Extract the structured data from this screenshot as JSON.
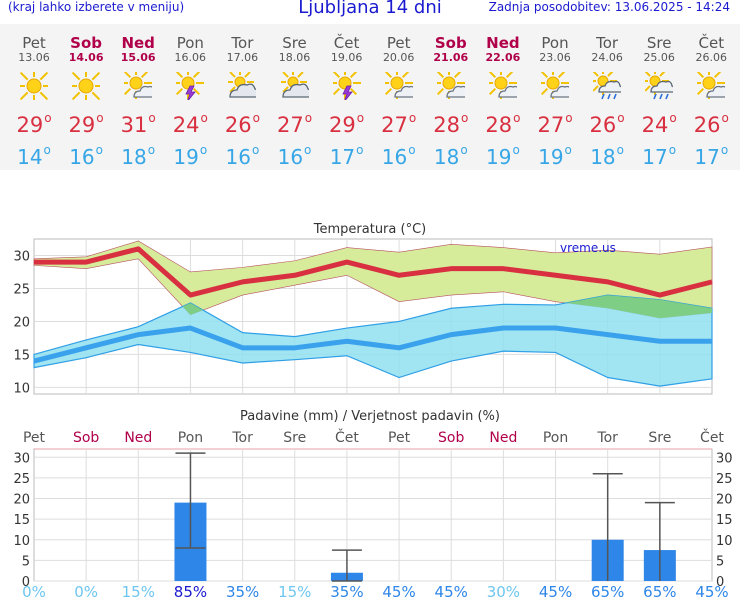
{
  "header": {
    "menu_hint": "(kraj lahko izberete v meniju)",
    "title": "Ljubljana 14 dni",
    "updated": "Zadnja posodobitev: 13.06.2025 - 14:24"
  },
  "days": [
    {
      "name": "Pet",
      "date": "13.06",
      "weekend": false,
      "icon": "sun-icon",
      "tmax": "29",
      "tmin": "14"
    },
    {
      "name": "Sob",
      "date": "14.06",
      "weekend": true,
      "icon": "sun-icon",
      "tmax": "29",
      "tmin": "16"
    },
    {
      "name": "Ned",
      "date": "15.06",
      "weekend": true,
      "icon": "partly-cloudy-icon",
      "tmax": "31",
      "tmin": "18"
    },
    {
      "name": "Pon",
      "date": "16.06",
      "weekend": false,
      "icon": "thunderstorm-sun-icon",
      "tmax": "24",
      "tmin": "19"
    },
    {
      "name": "Tor",
      "date": "17.06",
      "weekend": false,
      "icon": "cloudy-sun-icon",
      "tmax": "26",
      "tmin": "16"
    },
    {
      "name": "Sre",
      "date": "18.06",
      "weekend": false,
      "icon": "cloudy-sun-icon",
      "tmax": "27",
      "tmin": "16"
    },
    {
      "name": "Čet",
      "date": "19.06",
      "weekend": false,
      "icon": "thunderstorm-sun-icon",
      "tmax": "29",
      "tmin": "17"
    },
    {
      "name": "Pet",
      "date": "20.06",
      "weekend": false,
      "icon": "partly-cloudy-icon",
      "tmax": "27",
      "tmin": "16"
    },
    {
      "name": "Sob",
      "date": "21.06",
      "weekend": true,
      "icon": "partly-cloudy-icon",
      "tmax": "28",
      "tmin": "18"
    },
    {
      "name": "Ned",
      "date": "22.06",
      "weekend": true,
      "icon": "partly-cloudy-icon",
      "tmax": "28",
      "tmin": "19"
    },
    {
      "name": "Pon",
      "date": "23.06",
      "weekend": false,
      "icon": "partly-cloudy-icon",
      "tmax": "27",
      "tmin": "19"
    },
    {
      "name": "Tor",
      "date": "24.06",
      "weekend": false,
      "icon": "rain-sun-icon",
      "tmax": "26",
      "tmin": "18"
    },
    {
      "name": "Sre",
      "date": "25.06",
      "weekend": false,
      "icon": "rain-sun-icon",
      "tmax": "24",
      "tmin": "17"
    },
    {
      "name": "Čet",
      "date": "26.06",
      "weekend": false,
      "icon": "partly-cloudy-icon",
      "tmax": "26",
      "tmin": "17"
    }
  ],
  "colors": {
    "title_blue": "#1a1ad0",
    "weekend": "#b0004a",
    "tmax": "#d83040",
    "tmin": "#36a6e6",
    "max_band": "#d6ec9a",
    "min_band": "#90dff0",
    "overlap_band": "#7ccc7a",
    "precip_bar": "#2e86e8"
  },
  "chart_data": [
    {
      "type": "line",
      "title": "Temperatura (°C)",
      "watermark": "vreme.us",
      "ylim": [
        9,
        32.5
      ],
      "yticks": [
        10,
        15,
        20,
        25,
        30
      ],
      "series": [
        {
          "values": [
            29,
            29,
            31,
            24,
            26,
            27,
            29,
            27,
            28,
            28,
            27,
            26,
            24,
            26
          ],
          "upper": [
            29.5,
            29.8,
            32.2,
            27.5,
            28.2,
            29.2,
            31.2,
            30.5,
            31.7,
            31.2,
            30.4,
            30.8,
            30.2,
            31.3
          ],
          "lower": [
            28.5,
            28,
            29.5,
            21,
            24,
            25.5,
            27,
            23,
            24,
            24.5,
            23,
            22,
            20.5,
            21.3
          ]
        },
        {
          "values": [
            14,
            16,
            18,
            19,
            16,
            16,
            17,
            16,
            18,
            19,
            19,
            18,
            17,
            17
          ],
          "upper": [
            15,
            17.2,
            19.2,
            22.8,
            18.3,
            17.7,
            19,
            20,
            22,
            22.6,
            22.5,
            24,
            23.3,
            22
          ],
          "lower": [
            13,
            14.5,
            16.5,
            15.3,
            13.7,
            14.2,
            14.8,
            11.5,
            14,
            15.5,
            15.3,
            11.5,
            10.2,
            11.3
          ]
        }
      ]
    },
    {
      "type": "bar",
      "title": "Padavine (mm) / Verjetnost padavin (%)",
      "ylim": [
        0,
        32
      ],
      "yticks": [
        0,
        5,
        10,
        15,
        20,
        25,
        30
      ],
      "values": [
        0,
        0,
        0,
        19,
        0,
        0,
        2,
        0,
        0,
        0,
        0,
        10,
        7.5,
        0
      ],
      "error_low": [
        null,
        null,
        null,
        8,
        null,
        null,
        0,
        null,
        null,
        null,
        null,
        null,
        null,
        null
      ],
      "error_high": [
        null,
        null,
        null,
        31,
        null,
        null,
        7.5,
        null,
        null,
        null,
        null,
        26,
        19,
        null
      ],
      "probability": [
        "0%",
        "0%",
        "15%",
        "85%",
        "35%",
        "15%",
        "35%",
        "45%",
        "45%",
        "30%",
        "45%",
        "65%",
        "65%",
        "45%"
      ]
    }
  ]
}
